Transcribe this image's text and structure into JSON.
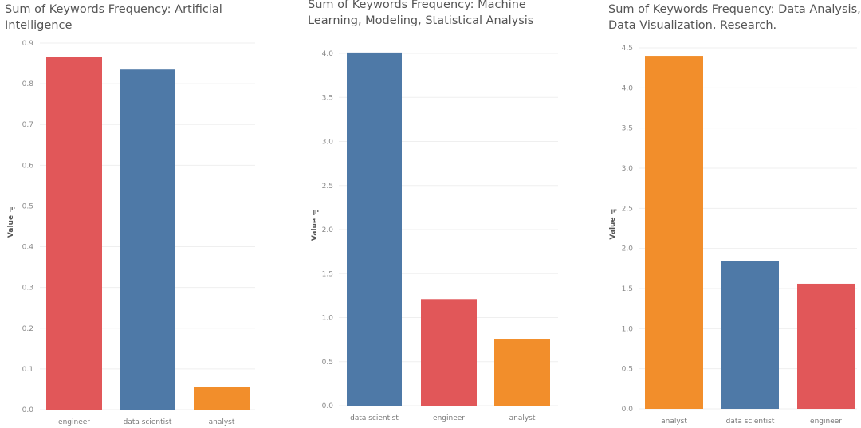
{
  "colors": {
    "engineer": "#e15759",
    "data scientist": "#4e79a7",
    "analyst": "#f28e2b"
  },
  "chart_data": [
    {
      "type": "bar",
      "title": "Sum of Keywords Frequency: Artificial\nIntelligence",
      "ylabel": "Value",
      "categories": [
        "engineer",
        "data scientist",
        "analyst"
      ],
      "values": [
        0.865,
        0.835,
        0.055
      ],
      "ylim": [
        0,
        0.9
      ],
      "yticks": [
        "0.0",
        "0.1",
        "0.2",
        "0.3",
        "0.4",
        "0.5",
        "0.6",
        "0.7",
        "0.8",
        "0.9"
      ],
      "grid": true
    },
    {
      "type": "bar",
      "title": "Sum of Keywords Frequency: Machine\nLearning, Modeling, Statistical Analysis",
      "ylabel": "Value",
      "categories": [
        "data scientist",
        "engineer",
        "analyst"
      ],
      "values": [
        4.01,
        1.21,
        0.76
      ],
      "ylim": [
        0,
        4.0
      ],
      "yticks": [
        "0.0",
        "0.5",
        "1.0",
        "1.5",
        "2.0",
        "2.5",
        "3.0",
        "3.5",
        "4.0"
      ],
      "grid": true
    },
    {
      "type": "bar",
      "title": "Sum of Keywords Frequency: Data Analysis,\nData Visualization, Research.",
      "ylabel": "Value",
      "categories": [
        "analyst",
        "data scientist",
        "engineer"
      ],
      "values": [
        4.4,
        1.84,
        1.56
      ],
      "ylim": [
        0,
        4.5
      ],
      "yticks": [
        "0.0",
        "0.5",
        "1.0",
        "1.5",
        "2.0",
        "2.5",
        "3.0",
        "3.5",
        "4.0",
        "4.5"
      ],
      "grid": true
    }
  ]
}
